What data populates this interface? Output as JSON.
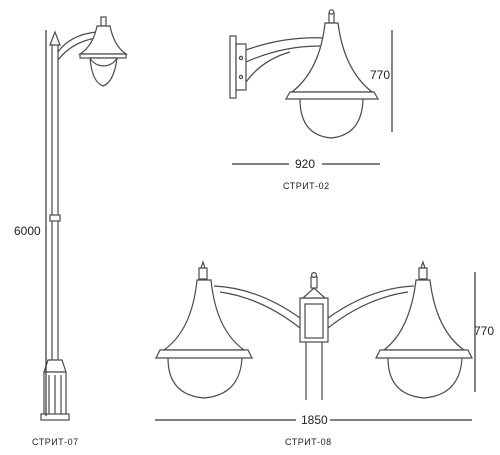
{
  "dimensions": {
    "pole_height": "6000",
    "wall_height": "770",
    "wall_width": "920",
    "double_height": "770",
    "double_width": "1850"
  },
  "captions": {
    "pole_model": "СТРИТ-07",
    "wall_model": "СТРИТ-02",
    "double_model": "СТРИТ-08"
  },
  "colors": {
    "line": "#4a4a4a",
    "background": "#ffffff"
  }
}
